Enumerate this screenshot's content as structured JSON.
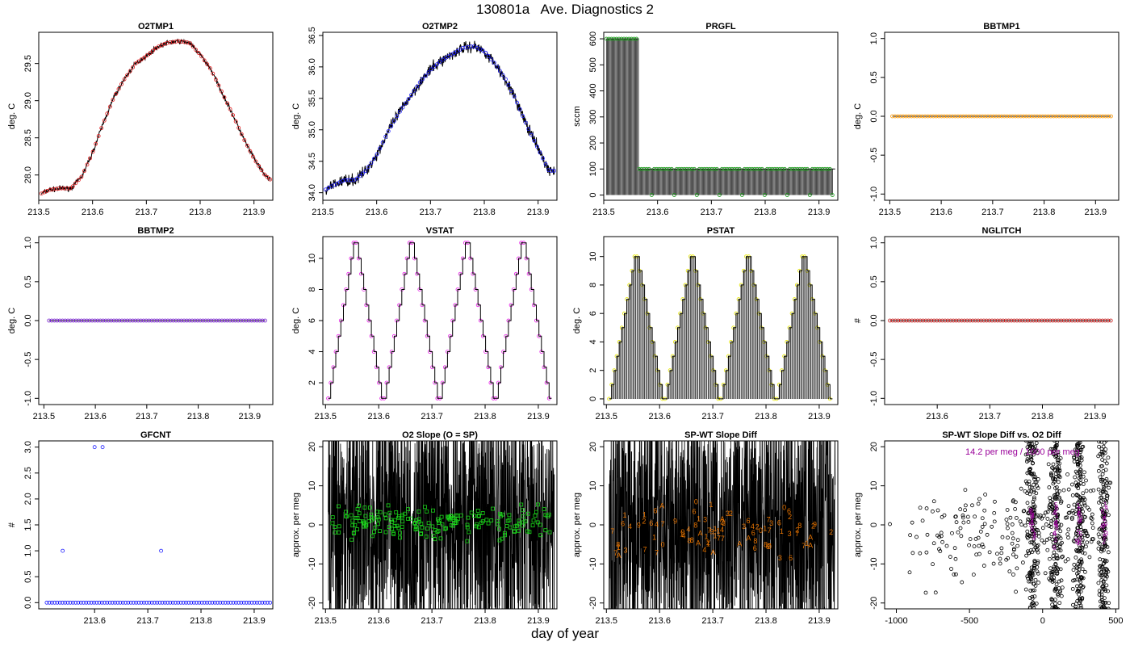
{
  "page": {
    "title": "130801a   Ave. Diagnostics 2",
    "xlabel": "day of year"
  },
  "chart_data": [
    {
      "id": "o2tmp1",
      "type": "line",
      "title": "O2TMP1",
      "xlabel": "",
      "ylabel": "deg. C",
      "xlim": [
        213.5,
        213.935
      ],
      "ylim": [
        27.66,
        29.92
      ],
      "xticks": [
        "213.5",
        "213.6",
        "213.7",
        "213.8",
        "213.9"
      ],
      "yticks": [
        "28.0",
        "28.5",
        "29.0",
        "29.5"
      ],
      "line_color": "#000000",
      "marker_color": "#e41a1c",
      "marker": "circle",
      "series": [
        {
          "x": [
            213.505,
            213.52,
            213.54,
            213.56,
            213.58,
            213.6,
            213.62,
            213.64,
            213.66,
            213.68,
            213.7,
            213.72,
            213.74,
            213.76,
            213.78,
            213.8,
            213.82,
            213.84,
            213.86,
            213.88,
            213.9,
            213.92,
            213.93
          ],
          "y": [
            27.75,
            27.8,
            27.82,
            27.82,
            27.98,
            28.3,
            28.7,
            29.05,
            29.3,
            29.5,
            29.6,
            29.72,
            29.78,
            29.8,
            29.78,
            29.62,
            29.42,
            29.12,
            28.82,
            28.5,
            28.22,
            28.0,
            27.94
          ]
        }
      ]
    },
    {
      "id": "o2tmp2",
      "type": "line",
      "title": "O2TMP2",
      "xlabel": "",
      "ylabel": "deg. C",
      "xlim": [
        213.5,
        213.935
      ],
      "ylim": [
        33.88,
        36.55
      ],
      "xticks": [
        "213.5",
        "213.6",
        "213.7",
        "213.8",
        "213.9"
      ],
      "yticks": [
        "34.0",
        "34.5",
        "35.0",
        "35.5",
        "36.0",
        "36.5"
      ],
      "line_color": "#000000",
      "marker_color": "#1a1aff",
      "marker": "circle",
      "series": [
        {
          "x": [
            213.505,
            213.52,
            213.54,
            213.56,
            213.58,
            213.6,
            213.62,
            213.64,
            213.66,
            213.68,
            213.7,
            213.72,
            213.74,
            213.76,
            213.78,
            213.8,
            213.82,
            213.84,
            213.86,
            213.88,
            213.9,
            213.92,
            213.93
          ],
          "y": [
            34.05,
            34.12,
            34.2,
            34.2,
            34.35,
            34.6,
            34.95,
            35.25,
            35.5,
            35.75,
            35.95,
            36.1,
            36.2,
            36.3,
            36.33,
            36.25,
            36.05,
            35.8,
            35.45,
            35.05,
            34.7,
            34.35,
            34.35
          ]
        }
      ]
    },
    {
      "id": "prgfl",
      "type": "line",
      "title": "PRGFL",
      "xlabel": "",
      "ylabel": "sccm",
      "xlim": [
        213.5,
        213.935
      ],
      "ylim": [
        -20,
        625
      ],
      "xticks": [
        "213.5",
        "213.6",
        "213.7",
        "213.8",
        "213.9"
      ],
      "yticks": [
        "0",
        "100",
        "200",
        "300",
        "400",
        "500",
        "600"
      ],
      "line_color": "#000000",
      "marker_color": "#1a9a1a",
      "marker": "circle",
      "note": "mostly 600 until day 213.56, then 100 with periodic drops to 0"
    },
    {
      "id": "bbtmp1",
      "type": "scatter",
      "title": "BBTMP1",
      "xlabel": "",
      "ylabel": "deg. C",
      "xlim": [
        213.49,
        213.945
      ],
      "ylim": [
        -1.08,
        1.08
      ],
      "xticks": [
        "213.5",
        "213.6",
        "213.7",
        "213.8",
        "213.9"
      ],
      "yticks": [
        "-1.0",
        "-0.5",
        "0.0",
        "0.5",
        "1.0"
      ],
      "line_color": "#000000",
      "marker_color": "#ff9900",
      "marker": "circle",
      "constant_value": 0.0,
      "x_range": [
        213.505,
        213.93
      ]
    },
    {
      "id": "bbtmp2",
      "type": "scatter",
      "title": "BBTMP2",
      "xlabel": "",
      "ylabel": "deg. C",
      "xlim": [
        213.49,
        213.945
      ],
      "ylim": [
        -1.08,
        1.08
      ],
      "xticks": [
        "213.5",
        "213.6",
        "213.7",
        "213.8",
        "213.9"
      ],
      "yticks": [
        "-1.0",
        "-0.5",
        "0.0",
        "0.5",
        "1.0"
      ],
      "line_color": "#000000",
      "marker_color": "#7a1fd6",
      "marker": "circle",
      "constant_value": 0.0,
      "x_range": [
        213.51,
        213.93
      ]
    },
    {
      "id": "vstat",
      "type": "line",
      "title": "VSTAT",
      "xlabel": "",
      "ylabel": "deg. C",
      "xlim": [
        213.495,
        213.935
      ],
      "ylim": [
        0.6,
        11.4
      ],
      "xticks": [
        "213.5",
        "213.6",
        "213.7",
        "213.8",
        "213.9"
      ],
      "yticks": [
        "2",
        "4",
        "6",
        "8",
        "10"
      ],
      "line_color": "#000000",
      "marker_color": "#e61ae6",
      "marker": "circle",
      "note": "step pattern cycling 1 to 11 and back, four cycles"
    },
    {
      "id": "pstat",
      "type": "line",
      "title": "PSTAT",
      "xlabel": "",
      "ylabel": "deg. C",
      "xlim": [
        213.495,
        213.935
      ],
      "ylim": [
        -0.4,
        11.4
      ],
      "xticks": [
        "213.5",
        "213.6",
        "213.7",
        "213.8",
        "213.9"
      ],
      "yticks": [
        "0",
        "2",
        "4",
        "6",
        "8",
        "10"
      ],
      "line_color": "#000000",
      "marker_color": "#e6e600",
      "marker": "circle",
      "note": "step pattern 0 to 11, four cycles, vertical lines to zero"
    },
    {
      "id": "nglitch",
      "type": "scatter",
      "title": "NGLITCH",
      "xlabel": "",
      "ylabel": "#",
      "xlim": [
        213.5,
        213.945
      ],
      "ylim": [
        -1.08,
        1.08
      ],
      "xticks": [
        "213.6",
        "213.7",
        "213.8",
        "213.9"
      ],
      "yticks": [
        "-1.0",
        "-0.5",
        "0.0",
        "0.5",
        "1.0"
      ],
      "line_color": "#000000",
      "marker_color": "#cc1a1a",
      "marker": "circle",
      "constant_value": 0.0,
      "x_range": [
        213.51,
        213.93
      ]
    },
    {
      "id": "gfcnt",
      "type": "scatter",
      "title": "GFCNT",
      "xlabel": "",
      "ylabel": "#",
      "xlim": [
        213.495,
        213.935
      ],
      "ylim": [
        -0.12,
        3.12
      ],
      "xticks": [
        "213.6",
        "213.7",
        "213.8",
        "213.9"
      ],
      "yticks": [
        "0.0",
        "0.5",
        "1.0",
        "1.5",
        "2.0",
        "2.5",
        "3.0"
      ],
      "line_color": "#000000",
      "marker_color": "#1a1aff",
      "marker": "circle",
      "baseline_value": 0.0,
      "x_range": [
        213.51,
        213.93
      ],
      "outliers": {
        "x": [
          213.54,
          213.6,
          213.615,
          213.725
        ],
        "y": [
          1,
          3,
          3,
          1
        ]
      }
    },
    {
      "id": "o2slope",
      "type": "scatter",
      "title": "O2 Slope (O = SP)",
      "xlabel": "",
      "ylabel": "approx. per meg",
      "xlim": [
        213.495,
        213.935
      ],
      "ylim": [
        -21.5,
        21.5
      ],
      "xticks": [
        "213.5",
        "213.6",
        "213.7",
        "213.8",
        "213.9"
      ],
      "yticks": [
        "-20",
        "-10",
        "0",
        "10",
        "20"
      ],
      "line_color": "#000000",
      "marker_color": "#1ad61a",
      "marker": "square",
      "center_value": 0.5,
      "spread": 3
    },
    {
      "id": "spwt",
      "type": "scatter",
      "title": "SP-WT Slope Diff",
      "xlabel": "",
      "ylabel": "approx. per meg",
      "xlim": [
        213.495,
        213.935
      ],
      "ylim": [
        -21.5,
        21.5
      ],
      "xticks": [
        "213.5",
        "213.6",
        "213.7",
        "213.8",
        "213.9"
      ],
      "yticks": [
        "-20",
        "-10",
        "0",
        "10",
        "20"
      ],
      "line_color": "#000000",
      "marker_color": "#e67300",
      "marker": "glyph",
      "glyphs": [
        "1",
        "2",
        "3",
        "4",
        "6",
        "7",
        "8",
        "9",
        "0",
        "A"
      ],
      "center_value": -2,
      "spread": 5
    },
    {
      "id": "spwtvso2",
      "type": "scatter",
      "title": "SP-WT Slope Diff vs. O2 Diff",
      "xlabel": "",
      "ylabel": "approx. per meg",
      "xlim": [
        -1080,
        520
      ],
      "ylim": [
        -21.5,
        21.5
      ],
      "xticks": [
        "-1000",
        "-500",
        "0",
        "500"
      ],
      "yticks": [
        "-20",
        "-10",
        "0",
        "10",
        "20"
      ],
      "line_color": "#000000",
      "marker_color": "#000000",
      "fit_color": "#990099",
      "marker": "circle",
      "annotation": "14.2 per meg / 1000 per meg",
      "dense_columns_x": [
        -70,
        90,
        250,
        420
      ]
    }
  ]
}
